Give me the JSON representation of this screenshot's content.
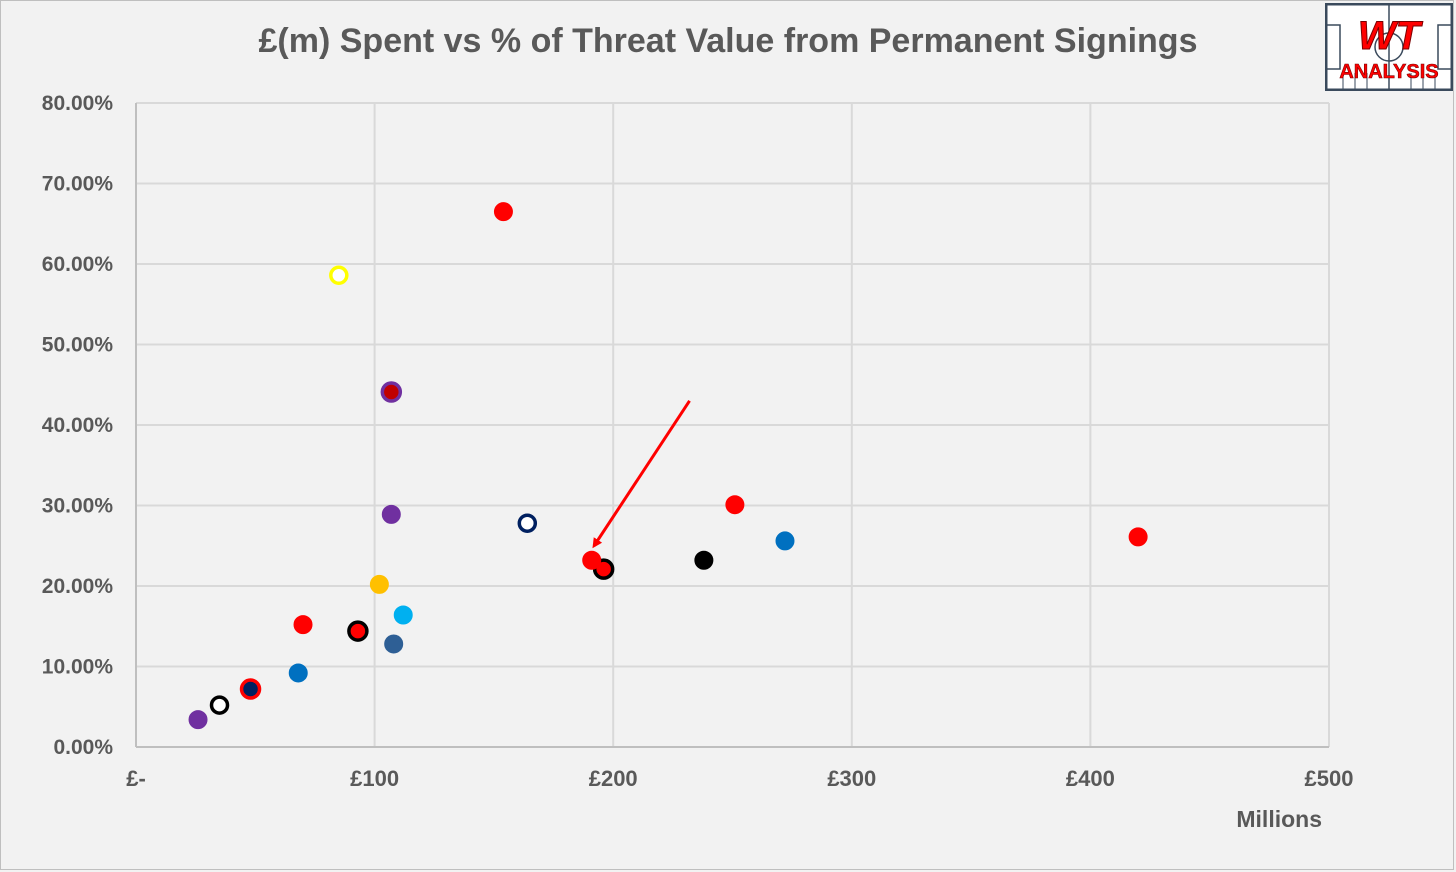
{
  "chart_data": {
    "type": "scatter",
    "title": "£(m) Spent vs % of Threat Value from Permanent Signings",
    "xlabel": "Millions",
    "ylabel": "",
    "xlim": [
      0,
      500
    ],
    "ylim": [
      0,
      0.8
    ],
    "x_ticks": [
      {
        "value": 0,
        "label": "£-"
      },
      {
        "value": 100,
        "label": "£100"
      },
      {
        "value": 200,
        "label": "£200"
      },
      {
        "value": 300,
        "label": "£300"
      },
      {
        "value": 400,
        "label": "£400"
      },
      {
        "value": 500,
        "label": "£500"
      }
    ],
    "y_ticks": [
      {
        "value": 0.0,
        "label": "0.00%"
      },
      {
        "value": 0.1,
        "label": "10.00%"
      },
      {
        "value": 0.2,
        "label": "20.00%"
      },
      {
        "value": 0.3,
        "label": "30.00%"
      },
      {
        "value": 0.4,
        "label": "40.00%"
      },
      {
        "value": 0.5,
        "label": "50.00%"
      },
      {
        "value": 0.6,
        "label": "60.00%"
      },
      {
        "value": 0.7,
        "label": "70.00%"
      },
      {
        "value": 0.8,
        "label": "80.00%"
      }
    ],
    "grid": true,
    "points": [
      {
        "x": 26,
        "y": 0.034,
        "fill": "#7030a0",
        "stroke": "#7030a0"
      },
      {
        "x": 35,
        "y": 0.052,
        "fill": "#ffffff",
        "stroke": "#000000"
      },
      {
        "x": 48,
        "y": 0.072,
        "fill": "#002060",
        "stroke": "#ff0000"
      },
      {
        "x": 68,
        "y": 0.092,
        "fill": "#0070c0",
        "stroke": "#0070c0"
      },
      {
        "x": 70,
        "y": 0.152,
        "fill": "#ff0000",
        "stroke": "#ff0000"
      },
      {
        "x": 85,
        "y": 0.586,
        "fill": "#ffffff",
        "stroke": "#ffff00"
      },
      {
        "x": 93,
        "y": 0.144,
        "fill": "#ff0000",
        "stroke": "#000000"
      },
      {
        "x": 102,
        "y": 0.202,
        "fill": "#ffc000",
        "stroke": "#ffc000"
      },
      {
        "x": 107,
        "y": 0.441,
        "fill": "#c00000",
        "stroke": "#7030a0"
      },
      {
        "x": 107,
        "y": 0.289,
        "fill": "#7030a0",
        "stroke": "#7030a0"
      },
      {
        "x": 108,
        "y": 0.128,
        "fill": "#2e5f95",
        "stroke": "#2e5f95"
      },
      {
        "x": 112,
        "y": 0.164,
        "fill": "#00b0f0",
        "stroke": "#00b0f0"
      },
      {
        "x": 154,
        "y": 0.665,
        "fill": "#ff0000",
        "stroke": "#ff0000"
      },
      {
        "x": 164,
        "y": 0.278,
        "fill": "#ffffff",
        "stroke": "#002060"
      },
      {
        "x": 196,
        "y": 0.221,
        "fill": "#ff0000",
        "stroke": "#000000"
      },
      {
        "x": 191,
        "y": 0.232,
        "fill": "#ff0000",
        "stroke": "#ff0000"
      },
      {
        "x": 238,
        "y": 0.232,
        "fill": "#000000",
        "stroke": "#000000"
      },
      {
        "x": 251,
        "y": 0.301,
        "fill": "#ff0000",
        "stroke": "#ff0000"
      },
      {
        "x": 272,
        "y": 0.256,
        "fill": "#0070c0",
        "stroke": "#0070c0"
      },
      {
        "x": 420,
        "y": 0.261,
        "fill": "#ff0000",
        "stroke": "#ff0000"
      }
    ],
    "annotations": [
      {
        "type": "arrow",
        "from": [
          232,
          0.43
        ],
        "to": [
          192,
          0.25
        ],
        "color": "#ff0000"
      }
    ]
  },
  "logo": {
    "line1": "WT",
    "line2": "ANALYSIS",
    "accent": "#ff0000",
    "border": "#3a4a5c"
  }
}
